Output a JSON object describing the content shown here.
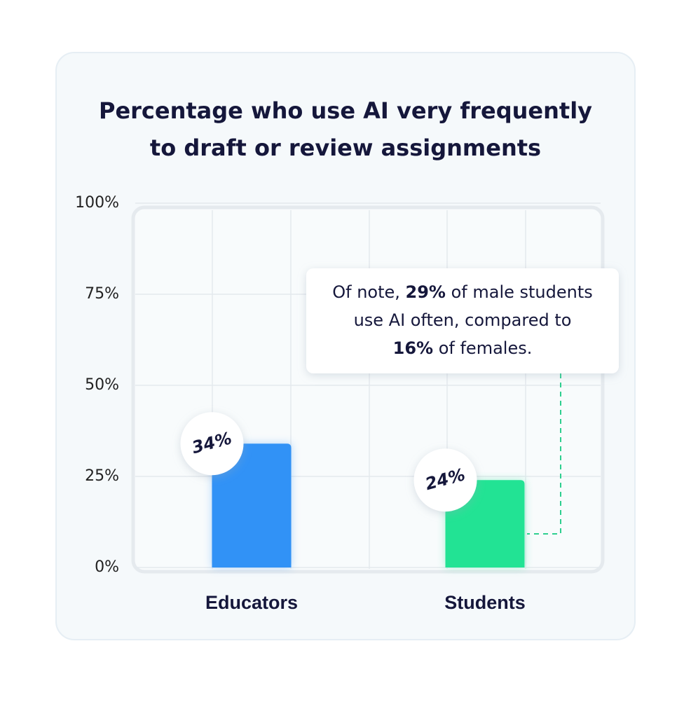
{
  "chart_data": {
    "type": "bar",
    "title": [
      "Percentage who use AI very frequently",
      "to draft or review assignments"
    ],
    "categories": [
      "Educators",
      "Students"
    ],
    "values": [
      34,
      24
    ],
    "value_labels": [
      "34%",
      "24%"
    ],
    "colors": [
      "#3192f6",
      "#22e394"
    ],
    "ylim": [
      0,
      100
    ],
    "yticks": [
      {
        "value": 0,
        "label": "0%"
      },
      {
        "value": 25,
        "label": "25%"
      },
      {
        "value": 50,
        "label": "50%"
      },
      {
        "value": 75,
        "label": "75%"
      },
      {
        "value": 100,
        "label": "100%"
      }
    ],
    "grid": true,
    "annotation": [
      [
        {
          "text": "Of note, "
        },
        {
          "text": "29%",
          "bold": true
        },
        {
          "text": " of male students"
        }
      ],
      [
        {
          "text": "use AI often, compared to"
        }
      ],
      [
        {
          "text": "16%",
          "bold": true
        },
        {
          "text": " of females."
        }
      ]
    ]
  }
}
